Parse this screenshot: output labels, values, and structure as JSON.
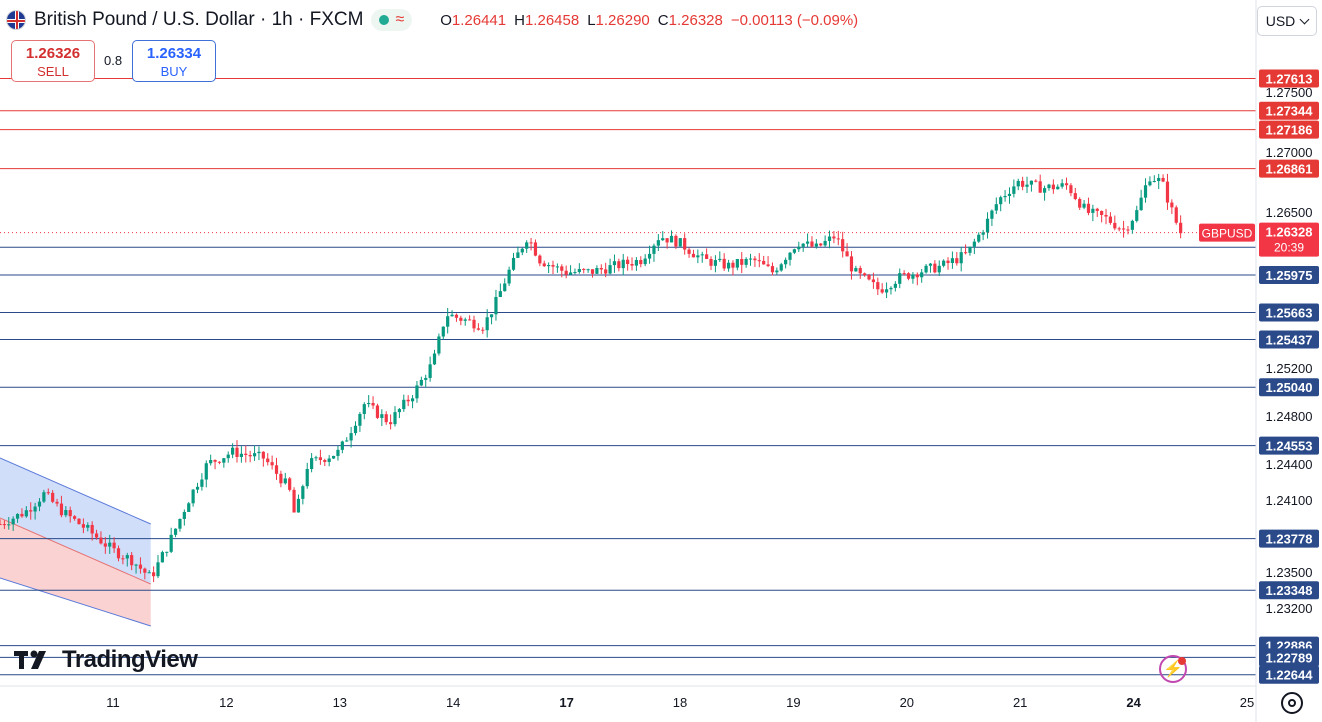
{
  "header": {
    "title": "British Pound / U.S. Dollar · 1h · FXCM",
    "ohlc": [
      {
        "k": "O",
        "v": "1.26441"
      },
      {
        "k": "H",
        "v": "1.26458"
      },
      {
        "k": "L",
        "v": "1.26290"
      },
      {
        "k": "C",
        "v": "1.26328"
      }
    ],
    "change": "−0.00113 (−0.09%)"
  },
  "trade": {
    "sell_price": "1.26326",
    "sell_label": "SELL",
    "spread": "0.8",
    "buy_price": "1.26334",
    "buy_label": "BUY"
  },
  "currency_button": "USD",
  "logo_text": "TradingView",
  "icons": {
    "flag": "uk-flag-icon",
    "wave": "wave-icon",
    "dropdown": "chevron-down-icon",
    "settings": "settings-icon",
    "alert": "flash-alert-icon"
  },
  "colors": {
    "up": "#089981",
    "down": "#f23645",
    "support": "#2a4a8a",
    "resistance": "#e53935",
    "channel_upper": "#a9c2f5",
    "channel_lower": "#f7b4b4"
  },
  "chart_data": {
    "type": "candlestick",
    "symbol": "GBPUSD",
    "timeframe": "1h",
    "last_price": "1.26328",
    "countdown": "20:39",
    "ylim": [
      1.2255,
      1.279
    ],
    "y_ticks": [
      "1.27500",
      "1.27000",
      "1.26500",
      "1.25200",
      "1.24800",
      "1.24400",
      "1.24100",
      "1.23500",
      "1.23200"
    ],
    "x_ticks": [
      {
        "label": "11",
        "bold": false,
        "t": 0.09
      },
      {
        "label": "12",
        "bold": false,
        "t": 0.181
      },
      {
        "label": "13",
        "bold": false,
        "t": 0.272
      },
      {
        "label": "14",
        "bold": false,
        "t": 0.363
      },
      {
        "label": "17",
        "bold": true,
        "t": 0.454
      },
      {
        "label": "18",
        "bold": false,
        "t": 0.545
      },
      {
        "label": "19",
        "bold": false,
        "t": 0.636
      },
      {
        "label": "20",
        "bold": false,
        "t": 0.727
      },
      {
        "label": "21",
        "bold": false,
        "t": 0.818
      },
      {
        "label": "24",
        "bold": true,
        "t": 0.909
      },
      {
        "label": "25",
        "bold": false,
        "t": 1.0
      }
    ],
    "resistance_levels": [
      "1.27613",
      "1.27344",
      "1.27186",
      "1.26861"
    ],
    "support_levels": [
      "1.26206",
      "1.25975",
      "1.25663",
      "1.25437",
      "1.25040",
      "1.24553",
      "1.23778",
      "1.23348",
      "1.22886",
      "1.22789",
      "1.22644"
    ],
    "channel": {
      "upper_band": {
        "start": [
          0.0,
          1.2445
        ],
        "end": [
          0.12,
          1.239
        ]
      },
      "middle": {
        "start": [
          0.0,
          1.2395
        ],
        "end": [
          0.12,
          1.234
        ]
      },
      "lower_band": {
        "start": [
          0.0,
          1.2345
        ],
        "end": [
          0.12,
          1.2305
        ]
      }
    },
    "path": [
      [
        0.0,
        1.239
      ],
      [
        0.02,
        1.24
      ],
      [
        0.035,
        1.2415
      ],
      [
        0.05,
        1.24
      ],
      [
        0.07,
        1.2385
      ],
      [
        0.09,
        1.2368
      ],
      [
        0.105,
        1.236
      ],
      [
        0.12,
        1.2345
      ],
      [
        0.135,
        1.2375
      ],
      [
        0.15,
        1.241
      ],
      [
        0.165,
        1.244
      ],
      [
        0.185,
        1.245
      ],
      [
        0.21,
        1.2445
      ],
      [
        0.23,
        1.242
      ],
      [
        0.235,
        1.2395
      ],
      [
        0.245,
        1.244
      ],
      [
        0.27,
        1.245
      ],
      [
        0.29,
        1.249
      ],
      [
        0.31,
        1.2475
      ],
      [
        0.33,
        1.25
      ],
      [
        0.345,
        1.2525
      ],
      [
        0.355,
        1.2565
      ],
      [
        0.37,
        1.256
      ],
      [
        0.385,
        1.2555
      ],
      [
        0.395,
        1.2575
      ],
      [
        0.405,
        1.26
      ],
      [
        0.42,
        1.263
      ],
      [
        0.43,
        1.261
      ],
      [
        0.45,
        1.26
      ],
      [
        0.47,
        1.26
      ],
      [
        0.49,
        1.2605
      ],
      [
        0.51,
        1.261
      ],
      [
        0.525,
        1.263
      ],
      [
        0.54,
        1.2625
      ],
      [
        0.56,
        1.261
      ],
      [
        0.58,
        1.2605
      ],
      [
        0.6,
        1.261
      ],
      [
        0.615,
        1.26
      ],
      [
        0.635,
        1.2625
      ],
      [
        0.65,
        1.262
      ],
      [
        0.665,
        1.263
      ],
      [
        0.68,
        1.26
      ],
      [
        0.7,
        1.2585
      ],
      [
        0.715,
        1.2595
      ],
      [
        0.73,
        1.26
      ],
      [
        0.75,
        1.2605
      ],
      [
        0.77,
        1.2615
      ],
      [
        0.785,
        1.264
      ],
      [
        0.795,
        1.266
      ],
      [
        0.81,
        1.2675
      ],
      [
        0.83,
        1.267
      ],
      [
        0.85,
        1.2672
      ],
      [
        0.865,
        1.265
      ],
      [
        0.88,
        1.2645
      ],
      [
        0.895,
        1.2635
      ],
      [
        0.905,
        1.265
      ],
      [
        0.915,
        1.268
      ],
      [
        0.925,
        1.2675
      ],
      [
        0.935,
        1.2645
      ],
      [
        0.94,
        1.2633
      ]
    ]
  }
}
